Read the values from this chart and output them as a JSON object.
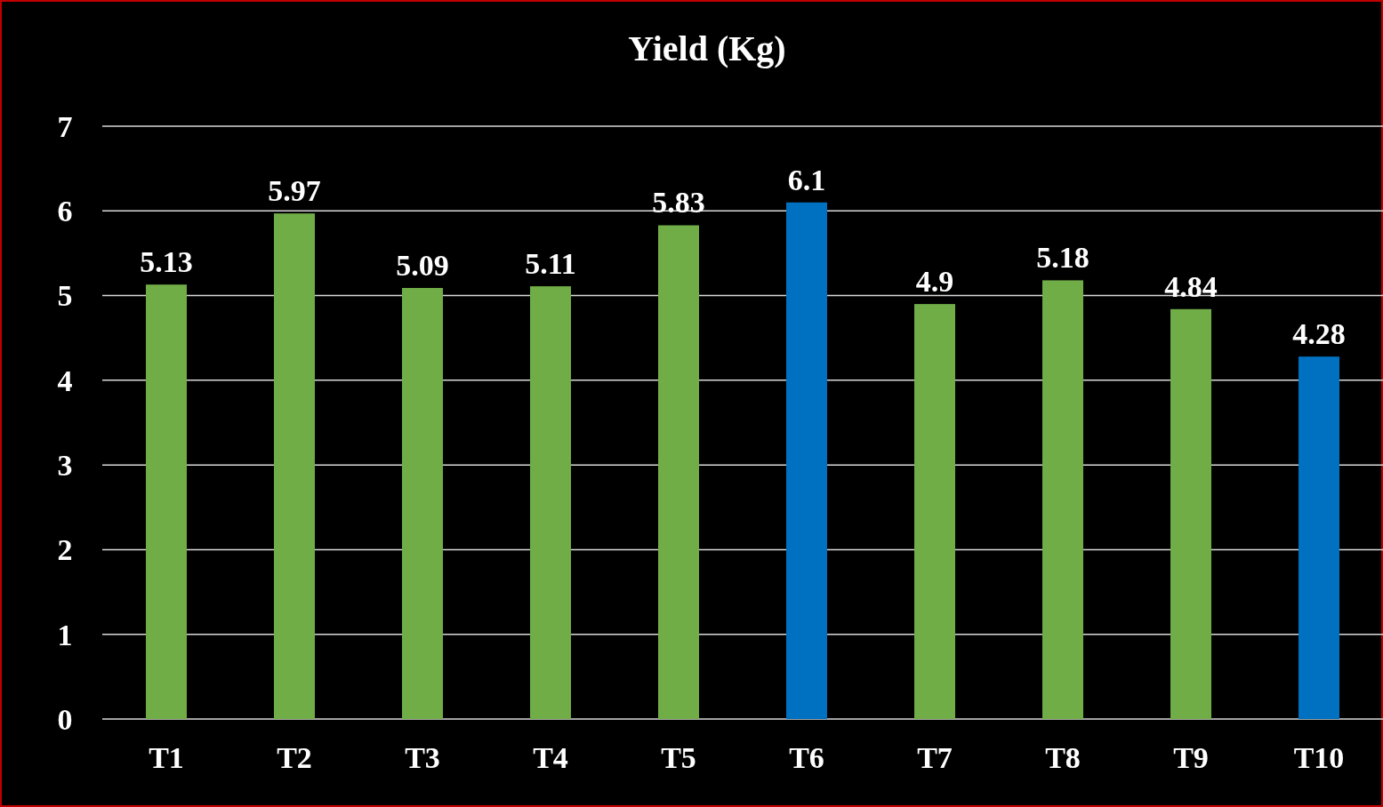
{
  "chart_data": {
    "type": "bar",
    "title": "Yield (Kg)",
    "categories": [
      "T1",
      "T2",
      "T3",
      "T4",
      "T5",
      "T6",
      "T7",
      "T8",
      "T9",
      "T10"
    ],
    "values": [
      5.13,
      5.97,
      5.09,
      5.11,
      5.83,
      6.1,
      4.9,
      5.18,
      4.84,
      4.28
    ],
    "colors": [
      "#70ad47",
      "#70ad47",
      "#70ad47",
      "#70ad47",
      "#70ad47",
      "#0070c0",
      "#70ad47",
      "#70ad47",
      "#70ad47",
      "#0070c0"
    ],
    "ylim": [
      0,
      7
    ],
    "yticks": [
      0,
      1,
      2,
      3,
      4,
      5,
      6,
      7
    ],
    "grid": "y",
    "data_labels": true
  }
}
